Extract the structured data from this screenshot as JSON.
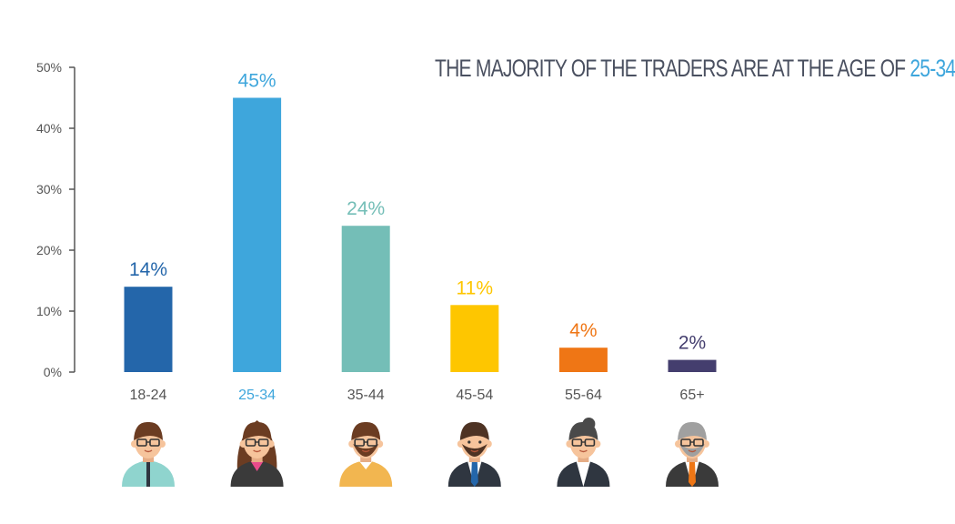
{
  "title": {
    "text": "THE MAJORITY OF THE TRADERS ARE AT THE AGE OF",
    "highlight": "25-34"
  },
  "colors": {
    "axis": "#555555",
    "highlight": "#3ea6dc",
    "title": "#4a5060"
  },
  "chart_data": {
    "type": "bar",
    "categories": [
      "18-24",
      "25-34",
      "35-44",
      "45-54",
      "55-64",
      "65+"
    ],
    "values": [
      14,
      45,
      24,
      11,
      4,
      2
    ],
    "value_labels": [
      "14%",
      "45%",
      "24%",
      "11%",
      "4%",
      "2%"
    ],
    "bar_colors": [
      "#2466aa",
      "#3ea6dc",
      "#74beb7",
      "#fec600",
      "#ef7615",
      "#443e6e"
    ],
    "category_label_colors": [
      "#555555",
      "#3ea6dc",
      "#555555",
      "#555555",
      "#555555",
      "#555555"
    ],
    "yticks": [
      0,
      10,
      20,
      30,
      40,
      50
    ],
    "ytick_labels": [
      "0%",
      "10%",
      "20%",
      "30%",
      "40%",
      "50%"
    ],
    "ylim": [
      0,
      50
    ],
    "grid": false,
    "xlabel": "",
    "ylabel": ""
  },
  "avatars": [
    {
      "icon": "young-man-glasses-avatar-icon",
      "skin": "#f6c49c",
      "hair": "#6b3c22",
      "clothes": "#8fd4ce"
    },
    {
      "icon": "woman-long-hair-avatar-icon",
      "skin": "#f6c49c",
      "hair": "#6b3c22",
      "clothes": "#3a3a3a"
    },
    {
      "icon": "bearded-man-avatar-icon",
      "skin": "#f6c49c",
      "hair": "#6b3c22",
      "clothes": "#f2b650"
    },
    {
      "icon": "businessman-avatar-icon",
      "skin": "#f6c49c",
      "hair": "#4e3324",
      "clothes": "#2f3640"
    },
    {
      "icon": "woman-hair-bun-avatar-icon",
      "skin": "#f6c49c",
      "hair": "#4a4a4a",
      "clothes": "#2f3640"
    },
    {
      "icon": "senior-man-avatar-icon",
      "skin": "#f6c49c",
      "hair": "#a0a0a0",
      "clothes": "#3a3a3a"
    }
  ]
}
